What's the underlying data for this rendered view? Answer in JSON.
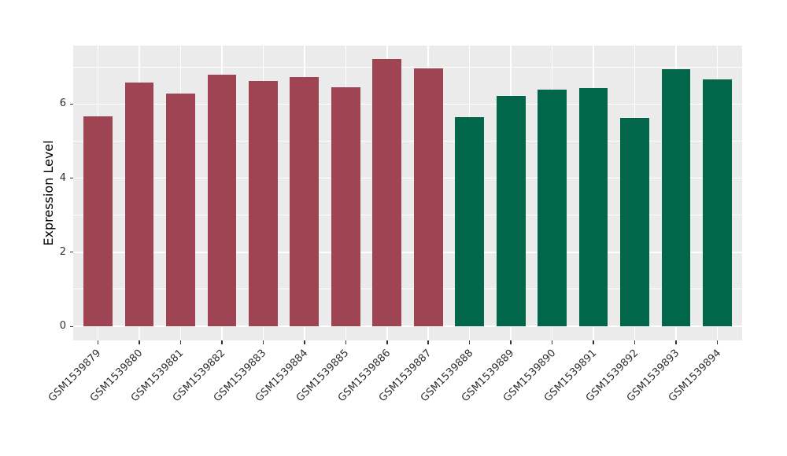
{
  "style": {
    "background": "#FFFFFF",
    "panel_background": "#EBEBEB",
    "gridline_color": "#FFFFFF",
    "tick_mark_color": "#333333",
    "axis_text_color": "#2E2E2E",
    "axis_title_color": "#000000",
    "group1_bar_color": "#9E4452",
    "group2_bar_color": "#02674A"
  },
  "chart_data": {
    "type": "bar",
    "title": "",
    "xlabel": "",
    "ylabel": "Expression Level",
    "categories": [
      "GSM1539879",
      "GSM1539880",
      "GSM1539881",
      "GSM1539882",
      "GSM1539883",
      "GSM1539884",
      "GSM1539885",
      "GSM1539886",
      "GSM1539887",
      "GSM1539888",
      "GSM1539889",
      "GSM1539890",
      "GSM1539891",
      "GSM1539892",
      "GSM1539893",
      "GSM1539894"
    ],
    "values": [
      5.67,
      6.58,
      6.28,
      6.8,
      6.62,
      6.74,
      6.46,
      7.22,
      6.97,
      5.64,
      6.23,
      6.4,
      6.44,
      5.62,
      6.95,
      6.67
    ],
    "colors": [
      "#9E4452",
      "#9E4452",
      "#9E4452",
      "#9E4452",
      "#9E4452",
      "#9E4452",
      "#9E4452",
      "#9E4452",
      "#9E4452",
      "#02674A",
      "#02674A",
      "#02674A",
      "#02674A",
      "#02674A",
      "#02674A",
      "#02674A"
    ],
    "yticks": [
      0,
      2,
      4,
      6
    ],
    "minor_yticks": [
      1,
      3,
      5,
      7
    ],
    "ylim": [
      -0.38,
      7.58
    ],
    "grid": true,
    "legend": false,
    "bar_width_fraction": 0.7,
    "x_expand": 0.6
  }
}
